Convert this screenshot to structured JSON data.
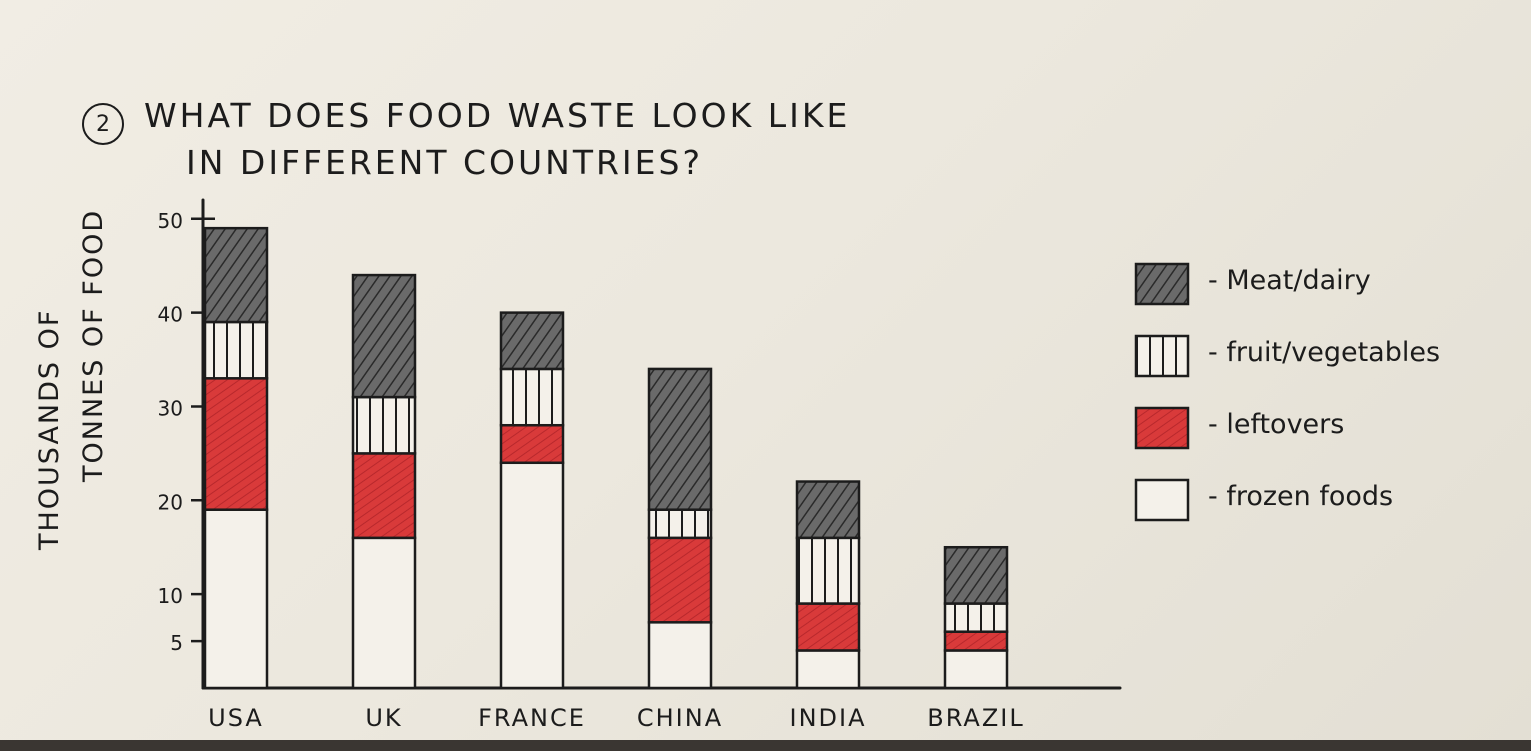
{
  "title": {
    "number": "2",
    "line1": "WHAT DOES FOOD WASTE LOOK LIKE",
    "line2": "IN DIFFERENT COUNTRIES?"
  },
  "colors": {
    "ink": "#1c1c1c",
    "meat_dairy": "#555555",
    "fruit_vegetables": "#f4f1ea",
    "leftovers": "#d93a3a",
    "frozen_foods": "#f4f1ea"
  },
  "chart_data": {
    "type": "bar",
    "stacked": true,
    "ylabel_line1": "THOUSANDS OF",
    "ylabel_line2": "TONNES OF FOOD",
    "xlabel": "",
    "categories": [
      "USA",
      "UK",
      "FRANCE",
      "CHINA",
      "INDIA",
      "BRAZIL"
    ],
    "yticks": [
      5,
      10,
      20,
      30,
      40,
      50
    ],
    "ytick_labels": [
      "5",
      "10",
      "20",
      "30",
      "40",
      "50"
    ],
    "ylim": [
      0,
      52
    ],
    "grid": false,
    "legend_position": "right",
    "series": [
      {
        "name": "frozen foods",
        "pattern": "plain",
        "values": [
          19,
          16,
          24,
          7,
          4,
          4
        ]
      },
      {
        "name": "leftovers",
        "pattern": "red-hatch",
        "values": [
          14,
          9,
          4,
          9,
          5,
          2
        ]
      },
      {
        "name": "fruit/vegetables",
        "pattern": "vertical-lines",
        "values": [
          6,
          6,
          6,
          3,
          7,
          3
        ]
      },
      {
        "name": "meat/dairy",
        "pattern": "diagonal-hatch",
        "values": [
          10,
          13,
          6,
          15,
          6,
          6
        ]
      }
    ]
  },
  "legend": [
    {
      "label": "- Meat/dairy",
      "key": "meat/dairy"
    },
    {
      "label": "- fruit/vegetables",
      "key": "fruit/vegetables"
    },
    {
      "label": "- leftovers",
      "key": "leftovers"
    },
    {
      "label": "- frozen foods",
      "key": "frozen foods"
    }
  ]
}
